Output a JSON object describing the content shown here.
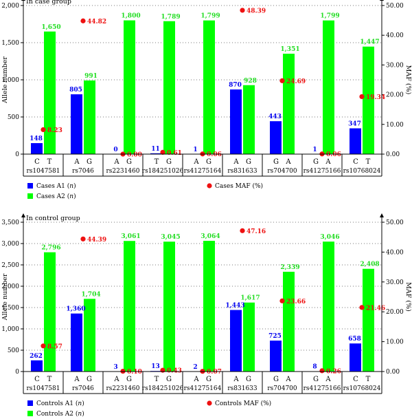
{
  "colors": {
    "a1": "#0000ff",
    "a2": "#00ff00",
    "maf": "#ee1111",
    "a1_label": "#0000ee",
    "a2_label": "#22dd22"
  },
  "chart_data": [
    {
      "type": "bar",
      "title": "In case group",
      "ylabel": "Allele number",
      "y2label": "MAF (%)",
      "ylim": [
        0,
        2000
      ],
      "y2lim": [
        0,
        50
      ],
      "yticks": [
        "0",
        "500",
        "1,000",
        "1,500",
        "2,000"
      ],
      "y2ticks": [
        "0.00",
        "10.00",
        "20.00",
        "30.00",
        "40.00",
        "50.00"
      ],
      "grid": true,
      "categories": [
        "rs1047581",
        "rs7046",
        "rs2231460",
        "rs184251026",
        "rs41275164",
        "rs831633",
        "rs704700",
        "rs41275166",
        "rs10768024"
      ],
      "alleles": [
        [
          "C",
          "T"
        ],
        [
          "A",
          "G"
        ],
        [
          "A",
          "G"
        ],
        [
          "T",
          "G"
        ],
        [
          "A",
          "G"
        ],
        [
          "A",
          "G"
        ],
        [
          "G",
          "A"
        ],
        [
          "G",
          "A"
        ],
        [
          "C",
          "T"
        ]
      ],
      "series": [
        {
          "name": "Cases A1 (n)",
          "values": [
            148,
            805,
            0,
            11,
            1,
            870,
            443,
            1,
            347
          ],
          "labels": [
            "148",
            "805",
            "0",
            "11",
            "1",
            "870",
            "443",
            "1",
            "347"
          ]
        },
        {
          "name": "Cases A2 (n)",
          "values": [
            1650,
            991,
            1800,
            1789,
            1799,
            928,
            1351,
            1799,
            1447
          ],
          "labels": [
            "1,650",
            "991",
            "1,800",
            "1,789",
            "1,799",
            "928",
            "1,351",
            "1,799",
            "1,447"
          ]
        },
        {
          "name": "Cases MAF (%)",
          "type": "scatter",
          "axis": "right",
          "values": [
            8.23,
            44.82,
            0.0,
            0.61,
            0.06,
            48.39,
            24.69,
            0.06,
            19.34
          ],
          "labels": [
            "8.23",
            "44.82",
            "0.00",
            "0.61",
            "0.06",
            "48.39",
            "24.69",
            "0.06",
            "19.34"
          ]
        }
      ],
      "legend": [
        "Cases A1 (",
        "n",
        ")",
        "Cases A2 (",
        "n",
        ")",
        "Cases MAF (%)"
      ]
    },
    {
      "type": "bar",
      "title": "In control group",
      "ylabel": "Allele number",
      "y2label": "MAF (%)",
      "ylim": [
        0,
        3500
      ],
      "y2lim": [
        0,
        50
      ],
      "yticks": [
        "0",
        "500",
        "1,000",
        "1,500",
        "2,000",
        "2,500",
        "3,000",
        "3,500"
      ],
      "y2ticks": [
        "0.00",
        "10.00",
        "20.00",
        "30.00",
        "40.00",
        "50.00"
      ],
      "grid": true,
      "categories": [
        "rs1047581",
        "rs7046",
        "rs2231460",
        "rs184251026",
        "rs41275164",
        "rs831633",
        "rs704700",
        "rs41275166",
        "rs10768024"
      ],
      "alleles": [
        [
          "C",
          "T"
        ],
        [
          "A",
          "G"
        ],
        [
          "A",
          "G"
        ],
        [
          "T",
          "G"
        ],
        [
          "A",
          "G"
        ],
        [
          "A",
          "G"
        ],
        [
          "G",
          "A"
        ],
        [
          "G",
          "A"
        ],
        [
          "C",
          "T"
        ]
      ],
      "series": [
        {
          "name": "Controls A1 (n)",
          "values": [
            262,
            1360,
            3,
            13,
            2,
            1443,
            725,
            8,
            658
          ],
          "labels": [
            "262",
            "1,360",
            "3",
            "13",
            "2",
            "1,443",
            "725",
            "8",
            "658"
          ]
        },
        {
          "name": "Controls A2 (n)",
          "values": [
            2796,
            1704,
            3061,
            3045,
            3064,
            1617,
            2339,
            3046,
            2408
          ],
          "labels": [
            "2,796",
            "1,704",
            "3,061",
            "3,045",
            "3,064",
            "1,617",
            "2,339",
            "3,046",
            "2,408"
          ]
        },
        {
          "name": "Controls MAF (%)",
          "type": "scatter",
          "axis": "right",
          "values": [
            8.57,
            44.39,
            0.1,
            0.43,
            0.07,
            47.16,
            23.66,
            0.26,
            21.46
          ],
          "labels": [
            "8.57",
            "44.39",
            "0.10",
            "0.43",
            "0.07",
            "47.16",
            "23.66",
            "0.26",
            "21.46"
          ]
        }
      ],
      "legend": [
        "Controls A1 (",
        "n",
        ")",
        "Controls A2 (",
        "n",
        ")",
        "Controls MAF (%)"
      ]
    }
  ]
}
